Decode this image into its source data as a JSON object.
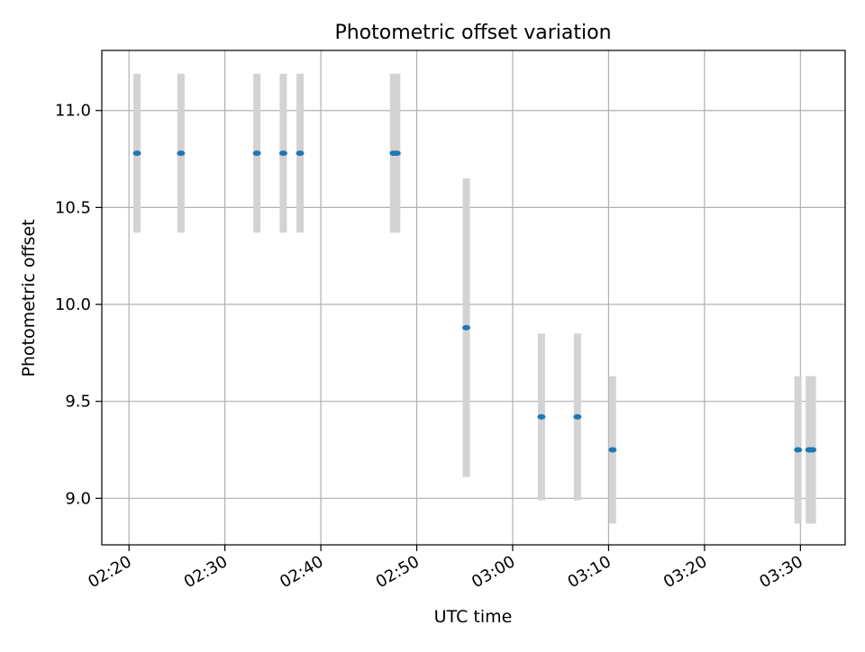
{
  "colors": {
    "marker": "#1f77b4",
    "errorbar": "#d3d3d3",
    "grid": "#b0b0b0",
    "axes": "#000000"
  },
  "chart_data": {
    "type": "scatter",
    "title": "Photometric offset variation",
    "xlabel": "UTC time",
    "ylabel": "Photometric offset",
    "x_ticks": [
      "02:20",
      "02:30",
      "02:40",
      "02:50",
      "03:00",
      "03:10",
      "03:20",
      "03:30"
    ],
    "x_tick_rotation": 30,
    "y_ticks": [
      "9.0",
      "9.5",
      "10.0",
      "10.5",
      "11.0"
    ],
    "xlim": [
      "02:17:10",
      "03:34:40"
    ],
    "ylim": [
      8.76,
      11.31
    ],
    "grid": true,
    "legend": "none",
    "series": [
      {
        "marker": "dot",
        "points": [
          {
            "x": "02:20:50",
            "y": 10.78,
            "err": 0.41
          },
          {
            "x": "02:25:25",
            "y": 10.78,
            "err": 0.41
          },
          {
            "x": "02:33:20",
            "y": 10.78,
            "err": 0.41
          },
          {
            "x": "02:36:05",
            "y": 10.78,
            "err": 0.41
          },
          {
            "x": "02:37:50",
            "y": 10.78,
            "err": 0.41
          },
          {
            "x": "02:47:35",
            "y": 10.78,
            "err": 0.41
          },
          {
            "x": "02:47:55",
            "y": 10.78,
            "err": 0.41
          },
          {
            "x": "02:55:10",
            "y": 9.88,
            "err": 0.77
          },
          {
            "x": "03:03:00",
            "y": 9.42,
            "err": 0.43
          },
          {
            "x": "03:06:45",
            "y": 9.42,
            "err": 0.43
          },
          {
            "x": "03:10:25",
            "y": 9.25,
            "err": 0.38
          },
          {
            "x": "03:29:45",
            "y": 9.25,
            "err": 0.38
          },
          {
            "x": "03:30:55",
            "y": 9.25,
            "err": 0.38
          },
          {
            "x": "03:31:15",
            "y": 9.25,
            "err": 0.38
          }
        ]
      }
    ]
  }
}
